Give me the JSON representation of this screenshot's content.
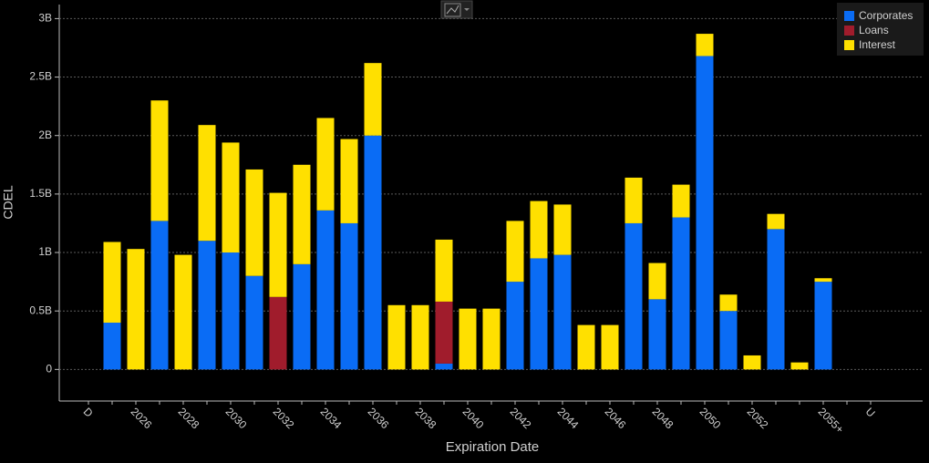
{
  "chart_data": {
    "type": "stacked_bar",
    "x_label": "Expiration Date",
    "y_label": "CDEL",
    "categories": [
      "D",
      null,
      "2026",
      null,
      "2028",
      null,
      "2030",
      null,
      "2032",
      null,
      "2034",
      null,
      "2036",
      null,
      "2038",
      null,
      "2040",
      null,
      "2042",
      null,
      "2044",
      null,
      "2046",
      null,
      "2048",
      null,
      "2050",
      null,
      "2052",
      null,
      null,
      "2055+",
      null,
      "U"
    ],
    "series": [
      {
        "name": "Corporates",
        "color": "#0a6cf5",
        "values": [
          null,
          0.4,
          null,
          1.27,
          null,
          1.1,
          1.0,
          0.8,
          null,
          0.9,
          1.36,
          1.25,
          2.0,
          null,
          null,
          0.05,
          null,
          null,
          0.75,
          0.95,
          0.98,
          null,
          null,
          1.25,
          0.6,
          1.3,
          2.68,
          0.5,
          null,
          1.2,
          null,
          0.75,
          null,
          null
        ]
      },
      {
        "name": "Loans",
        "color": "#a01c2c",
        "values": [
          null,
          null,
          null,
          null,
          null,
          null,
          null,
          null,
          0.62,
          null,
          null,
          null,
          null,
          null,
          null,
          0.53,
          null,
          null,
          null,
          null,
          null,
          null,
          null,
          null,
          null,
          null,
          null,
          null,
          null,
          null,
          null,
          null,
          null,
          null
        ]
      },
      {
        "name": "Interest",
        "color": "#ffe000",
        "values": [
          null,
          0.69,
          1.03,
          1.03,
          0.98,
          0.99,
          0.94,
          0.91,
          0.89,
          0.85,
          0.79,
          0.72,
          0.62,
          0.55,
          0.55,
          0.53,
          0.52,
          0.52,
          0.52,
          0.49,
          0.43,
          0.38,
          0.38,
          0.39,
          0.31,
          0.28,
          0.19,
          0.14,
          0.12,
          0.13,
          0.06,
          0.03,
          null,
          null
        ]
      }
    ],
    "ylim": [
      -0.27,
      3.12
    ],
    "yticks": [
      0,
      {
        "value": 0.5,
        "label": "0.5B"
      },
      {
        "value": 1,
        "label": "1B"
      },
      {
        "value": 1.5,
        "label": "1.5B"
      },
      {
        "value": 2,
        "label": "2B"
      },
      {
        "value": 2.5,
        "label": "2.5B"
      },
      {
        "value": 3,
        "label": "3B"
      }
    ],
    "grid": true,
    "legend": "top-right"
  }
}
